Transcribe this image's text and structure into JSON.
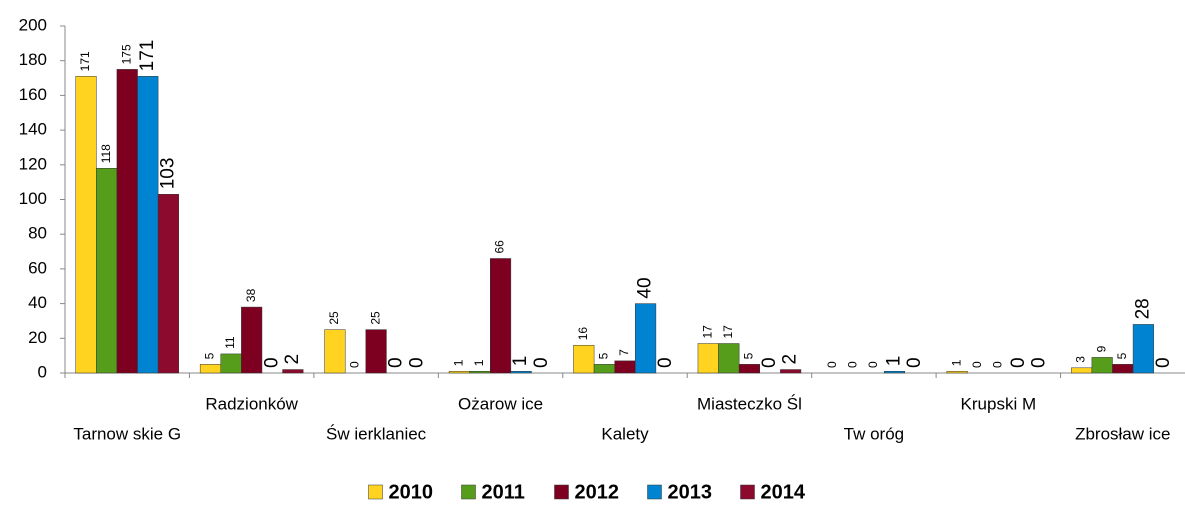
{
  "chart_data": {
    "type": "bar",
    "categories": [
      "Tarnow skie G",
      "Radzionków",
      "Św ierklaniec",
      "Ożarow ice",
      "Kalety",
      "Miasteczko Śl",
      "Tw oróg",
      "Krupski M",
      "Zbrosław ice"
    ],
    "series": [
      {
        "name": "2010",
        "color": "#ffd320",
        "values": [
          171,
          5,
          25,
          1,
          16,
          17,
          0,
          1,
          3
        ]
      },
      {
        "name": "2011",
        "color": "#579d1c",
        "values": [
          118,
          11,
          0,
          1,
          5,
          17,
          0,
          0,
          9
        ]
      },
      {
        "name": "2012",
        "color": "#7e0021",
        "values": [
          175,
          38,
          25,
          66,
          7,
          5,
          0,
          0,
          5
        ]
      },
      {
        "name": "2013",
        "color": "#0084d1",
        "values": [
          171,
          0,
          0,
          1,
          40,
          0,
          1,
          0,
          28
        ]
      },
      {
        "name": "2014",
        "color": "#8b0a2e",
        "values": [
          103,
          2,
          0,
          0,
          0,
          2,
          0,
          0,
          0
        ]
      }
    ],
    "ylim": [
      0,
      200
    ],
    "yticks": [
      0,
      20,
      40,
      60,
      80,
      100,
      120,
      140,
      160,
      180,
      200
    ],
    "grid": false,
    "legend": "bottom"
  }
}
